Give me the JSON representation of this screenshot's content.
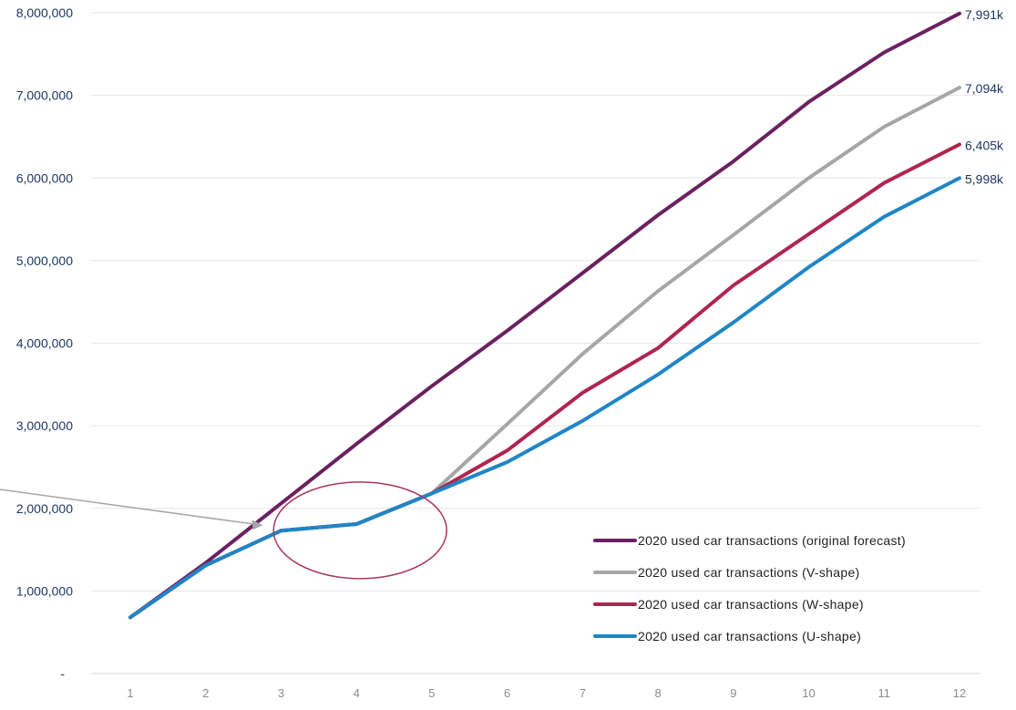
{
  "chart_data": {
    "type": "line",
    "title": "",
    "xlabel": "",
    "ylabel": "",
    "x": [
      1,
      2,
      3,
      4,
      5,
      6,
      7,
      8,
      9,
      10,
      11,
      12
    ],
    "ylim": [
      0,
      8000000
    ],
    "y_ticks": [
      0,
      1000000,
      2000000,
      3000000,
      4000000,
      5000000,
      6000000,
      7000000,
      8000000
    ],
    "y_tick_labels": [
      "-",
      "1,000,000",
      "2,000,000",
      "3,000,000",
      "4,000,000",
      "5,000,000",
      "6,000,000",
      "7,000,000",
      "8,000,000"
    ],
    "grid": "horizontal",
    "legend_position": "bottom-right",
    "series": [
      {
        "name": "2020 used car transactions (original forecast)",
        "color": "#6b2161",
        "values": [
          680000,
          1340000,
          2060000,
          2780000,
          3480000,
          4150000,
          4850000,
          5550000,
          6200000,
          6920000,
          7520000,
          7991000
        ],
        "end_label": "7,991k"
      },
      {
        "name": "2020 used car transactions (V-shape)",
        "color": "#a6a6a6",
        "values": [
          680000,
          1310000,
          1730000,
          1810000,
          2180000,
          3020000,
          3870000,
          4630000,
          5310000,
          6000000,
          6620000,
          7094000
        ],
        "end_label": "7,094k"
      },
      {
        "name": "2020 used car transactions (W-shape)",
        "color": "#b0254f",
        "values": [
          680000,
          1310000,
          1730000,
          1810000,
          2180000,
          2700000,
          3400000,
          3940000,
          4700000,
          5320000,
          5940000,
          6405000
        ],
        "end_label": "6,405k"
      },
      {
        "name": "2020 used car transactions (U-shape)",
        "color": "#1f86c6",
        "values": [
          680000,
          1310000,
          1730000,
          1810000,
          2180000,
          2560000,
          3060000,
          3620000,
          4250000,
          4920000,
          5530000,
          5998000
        ],
        "end_label": "5,998k"
      }
    ],
    "annotations": {
      "ellipse": {
        "center": [
          4,
          1900000
        ],
        "color": "#a8385f"
      },
      "arrow": {
        "target": [
          3,
          1950000
        ],
        "color": "#a6a6a6"
      }
    }
  }
}
